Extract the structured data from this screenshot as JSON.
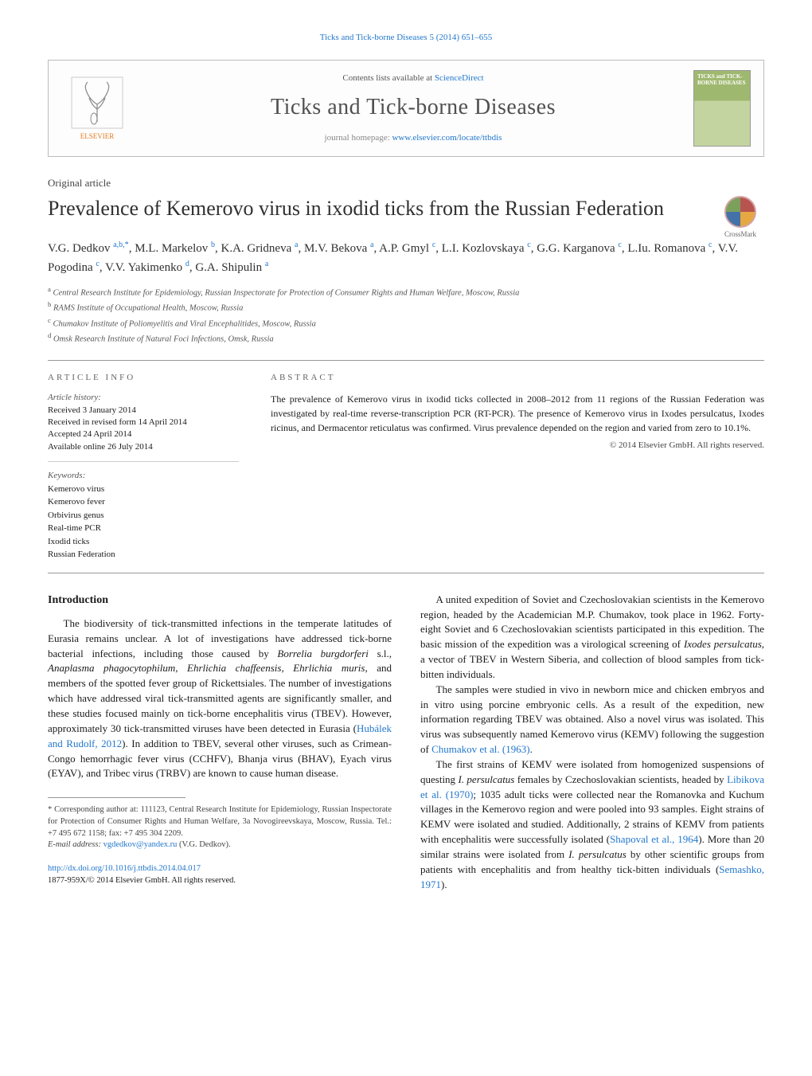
{
  "top_link": "Ticks and Tick-borne Diseases 5 (2014) 651–655",
  "header": {
    "publisher_name": "ELSEVIER",
    "contents_prefix": "Contents lists available at ",
    "contents_link": "ScienceDirect",
    "journal_title": "Ticks and Tick-borne Diseases",
    "homepage_prefix": "journal homepage: ",
    "homepage_url": "www.elsevier.com/locate/ttbdis",
    "cover_text_top": "TICKS and TICK-BORNE DISEASES"
  },
  "article_type": "Original article",
  "article_title": "Prevalence of Kemerovo virus in ixodid ticks from the Russian Federation",
  "crossmark_label": "CrossMark",
  "authors_html": "V.G. Dedkov <sup>a,b,*</sup>, M.L. Markelov <sup>b</sup>, K.A. Gridneva <sup>a</sup>, M.V. Bekova <sup>a</sup>, A.P. Gmyl <sup>c</sup>, L.I. Kozlovskaya <sup>c</sup>, G.G. Karganova <sup>c</sup>, L.Iu. Romanova <sup>c</sup>, V.V. Pogodina <sup>c</sup>, V.V. Yakimenko <sup>d</sup>, G.A. Shipulin <sup>a</sup>",
  "affiliations": [
    "a Central Research Institute for Epidemiology, Russian Inspectorate for Protection of Consumer Rights and Human Welfare, Moscow, Russia",
    "b RAMS Institute of Occupational Health, Moscow, Russia",
    "c Chumakov Institute of Poliomyelitis and Viral Encephalitides, Moscow, Russia",
    "d Omsk Research Institute of Natural Foci Infections, Omsk, Russia"
  ],
  "article_info": {
    "heading": "ARTICLE INFO",
    "history_label": "Article history:",
    "history": [
      "Received 3 January 2014",
      "Received in revised form 14 April 2014",
      "Accepted 24 April 2014",
      "Available online 26 July 2014"
    ],
    "keywords_label": "Keywords:",
    "keywords": [
      "Kemerovo virus",
      "Kemerovo fever",
      "Orbivirus genus",
      "Real-time PCR",
      "Ixodid ticks",
      "Russian Federation"
    ]
  },
  "abstract": {
    "heading": "ABSTRACT",
    "text": "The prevalence of Kemerovo virus in ixodid ticks collected in 2008–2012 from 11 regions of the Russian Federation was investigated by real-time reverse-transcription PCR (RT-PCR). The presence of Kemerovo virus in Ixodes persulcatus, Ixodes ricinus, and Dermacentor reticulatus was confirmed. Virus prevalence depended on the region and varied from zero to 10.1%.",
    "copyright": "© 2014 Elsevier GmbH. All rights reserved."
  },
  "intro_heading": "Introduction",
  "col_left_paragraphs": [
    "The biodiversity of tick-transmitted infections in the temperate latitudes of Eurasia remains unclear. A lot of investigations have addressed tick-borne bacterial infections, including those caused by Borrelia burgdorferi s.l., Anaplasma phagocytophilum, Ehrlichia chaffeensis, Ehrlichia muris, and members of the spotted fever group of Rickettsiales. The number of investigations which have addressed viral tick-transmitted agents are significantly smaller, and these studies focused mainly on tick-borne encephalitis virus (TBEV). However, approximately 30 tick-transmitted viruses have been detected in Eurasia (Hubálek and Rudolf, 2012). In addition to TBEV, several other viruses, such as Crimean-Congo hemorrhagic fever virus (CCHFV), Bhanja virus (BHAV), Eyach virus (EYAV), and Tribec virus (TRBV) are known to cause human disease."
  ],
  "col_right_paragraphs": [
    "A united expedition of Soviet and Czechoslovakian scientists in the Kemerovo region, headed by the Academician M.P. Chumakov, took place in 1962. Forty-eight Soviet and 6 Czechoslovakian scientists participated in this expedition. The basic mission of the expedition was a virological screening of Ixodes persulcatus, a vector of TBEV in Western Siberia, and collection of blood samples from tick-bitten individuals.",
    "The samples were studied in vivo in newborn mice and chicken embryos and in vitro using porcine embryonic cells. As a result of the expedition, new information regarding TBEV was obtained. Also a novel virus was isolated. This virus was subsequently named Kemerovo virus (KEMV) following the suggestion of Chumakov et al. (1963).",
    "The first strains of KEMV were isolated from homogenized suspensions of questing I. persulcatus females by Czechoslovakian scientists, headed by Libikova et al. (1970); 1035 adult ticks were collected near the Romanovka and Kuchum villages in the Kemerovo region and were pooled into 93 samples. Eight strains of KEMV were isolated and studied. Additionally, 2 strains of KEMV from patients with encephalitis were successfully isolated (Shapoval et al., 1964). More than 20 similar strains were isolated from I. persulcatus by other scientific groups from patients with encephalitis and from healthy tick-bitten individuals (Semashko, 1971)."
  ],
  "footnotes": {
    "corresponding": "* Corresponding author at: 111123, Central Research Institute for Epidemiology, Russian Inspectorate for Protection of Consumer Rights and Human Welfare, 3a Novogireevskaya, Moscow, Russia. Tel.: +7 495 672 1158; fax: +7 495 304 2209.",
    "email_label": "E-mail address: ",
    "email": "vgdedkov@yandex.ru",
    "email_who": " (V.G. Dedkov)."
  },
  "bottom": {
    "doi": "http://dx.doi.org/10.1016/j.ttbdis.2014.04.017",
    "issn_line": "1877-959X/© 2014 Elsevier GmbH. All rights reserved."
  },
  "colors": {
    "link": "#2277cc",
    "rule": "#999999",
    "heading": "#303030"
  }
}
